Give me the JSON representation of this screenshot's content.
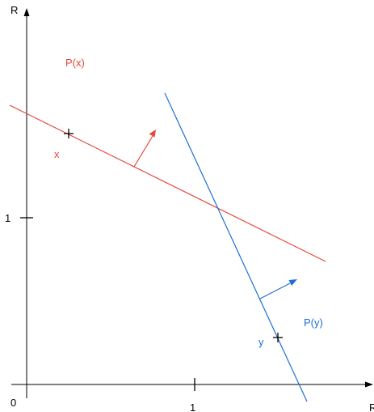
{
  "axes": {
    "origin_label": "0",
    "x_axis_label": "R",
    "y_axis_label": "R",
    "x_tick_label": "1",
    "y_tick_label": "1"
  },
  "hyperplanes": [
    {
      "name": "P(x)",
      "point_label": "x",
      "color": "#e8453c"
    },
    {
      "name": "P(y)",
      "point_label": "y",
      "color": "#1f6fd6"
    }
  ],
  "colors": {
    "axis": "#000000",
    "red": "#e8453c",
    "blue": "#1f6fd6"
  }
}
